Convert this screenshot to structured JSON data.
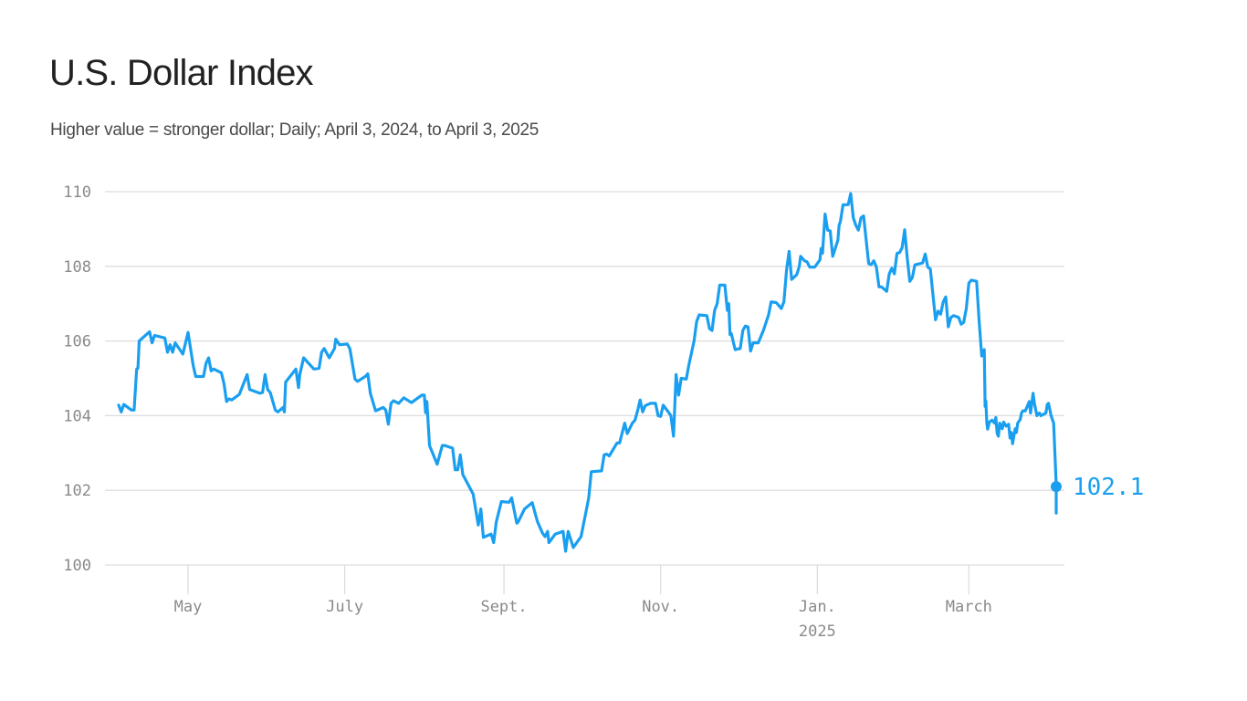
{
  "header": {
    "title": "U.S. Dollar Index",
    "subtitle": "Higher value = stronger dollar; Daily; April 3, 2024, to April 3, 2025"
  },
  "colors": {
    "line": "#1a9ff0",
    "grid": "#dddddd",
    "tick_text": "#8a8a8a",
    "title": "#222222",
    "subtitle": "#4a4a4a"
  },
  "chart_data": {
    "type": "line",
    "title": "U.S. Dollar Index",
    "subtitle": "Higher value = stronger dollar; Daily; April 3, 2024, to April 3, 2025",
    "xlabel": "",
    "ylabel": "",
    "ylim": [
      100,
      110
    ],
    "yticks": [
      100,
      102,
      104,
      106,
      108,
      110
    ],
    "xticks": [
      {
        "label": "May",
        "day": 27
      },
      {
        "label": "July",
        "day": 88
      },
      {
        "label": "Sept.",
        "day": 150
      },
      {
        "label": "Nov.",
        "day": 211
      },
      {
        "label": "Jan.",
        "sublabel": "2025",
        "day": 272
      },
      {
        "label": "March",
        "day": 331
      }
    ],
    "x_start": "2024-04-03",
    "x_end": "2025-04-03",
    "x_days_total": 365,
    "grid": true,
    "legend": null,
    "end_annotation": {
      "label": "102.1",
      "value": 102.1,
      "day": 365
    },
    "series": [
      {
        "name": "U.S. Dollar Index",
        "points": [
          [
            0,
            104.28
          ],
          [
            1,
            104.1
          ],
          [
            2,
            104.3
          ],
          [
            5,
            104.15
          ],
          [
            6,
            104.15
          ],
          [
            7,
            105.25
          ],
          [
            7.5,
            105.27
          ],
          [
            8,
            106.0
          ],
          [
            12,
            106.25
          ],
          [
            13,
            105.95
          ],
          [
            14,
            106.15
          ],
          [
            18,
            106.08
          ],
          [
            19,
            105.7
          ],
          [
            20,
            105.9
          ],
          [
            21,
            105.7
          ],
          [
            22,
            105.95
          ],
          [
            25,
            105.65
          ],
          [
            27,
            106.23
          ],
          [
            29,
            105.35
          ],
          [
            30,
            105.05
          ],
          [
            33,
            105.05
          ],
          [
            34,
            105.4
          ],
          [
            35,
            105.55
          ],
          [
            36,
            105.2
          ],
          [
            37,
            105.25
          ],
          [
            40,
            105.15
          ],
          [
            41,
            104.85
          ],
          [
            42,
            104.38
          ],
          [
            43,
            104.45
          ],
          [
            44,
            104.42
          ],
          [
            47,
            104.57
          ],
          [
            49,
            104.93
          ],
          [
            50,
            105.1
          ],
          [
            51,
            104.7
          ],
          [
            55,
            104.6
          ],
          [
            56,
            104.62
          ],
          [
            57,
            105.1
          ],
          [
            58,
            104.7
          ],
          [
            59,
            104.62
          ],
          [
            61,
            104.15
          ],
          [
            62,
            104.1
          ],
          [
            64,
            104.22
          ],
          [
            64.5,
            104.1
          ],
          [
            65,
            104.9
          ],
          [
            69,
            105.25
          ],
          [
            70,
            104.75
          ],
          [
            70.5,
            105.1
          ],
          [
            72,
            105.55
          ],
          [
            76,
            105.25
          ],
          [
            78,
            105.27
          ],
          [
            79,
            105.7
          ],
          [
            80,
            105.8
          ],
          [
            82,
            105.55
          ],
          [
            84,
            105.8
          ],
          [
            84.5,
            106.05
          ],
          [
            86,
            105.9
          ],
          [
            89,
            105.92
          ],
          [
            90,
            105.8
          ],
          [
            92,
            104.98
          ],
          [
            93,
            104.92
          ],
          [
            96,
            105.05
          ],
          [
            97,
            105.12
          ],
          [
            98,
            104.6
          ],
          [
            100,
            104.13
          ],
          [
            103,
            104.22
          ],
          [
            104,
            104.15
          ],
          [
            105,
            103.77
          ],
          [
            106,
            104.33
          ],
          [
            107,
            104.4
          ],
          [
            109,
            104.33
          ],
          [
            111,
            104.48
          ],
          [
            114,
            104.35
          ],
          [
            118,
            104.55
          ],
          [
            119,
            104.55
          ],
          [
            119.5,
            104.08
          ],
          [
            120,
            104.38
          ],
          [
            121,
            103.2
          ],
          [
            124,
            102.7
          ],
          [
            126,
            103.2
          ],
          [
            127,
            103.2
          ],
          [
            130,
            103.13
          ],
          [
            131,
            102.55
          ],
          [
            132,
            102.55
          ],
          [
            133,
            102.95
          ],
          [
            134,
            102.42
          ],
          [
            138,
            101.9
          ],
          [
            140,
            101.07
          ],
          [
            141,
            101.5
          ],
          [
            142,
            100.74
          ],
          [
            145,
            100.83
          ],
          [
            146,
            100.6
          ],
          [
            147,
            101.15
          ],
          [
            149,
            101.7
          ],
          [
            152,
            101.68
          ],
          [
            153,
            101.8
          ],
          [
            155,
            101.12
          ],
          [
            155.5,
            101.15
          ],
          [
            158,
            101.5
          ],
          [
            161,
            101.67
          ],
          [
            163,
            101.17
          ],
          [
            165,
            100.85
          ],
          [
            166,
            100.76
          ],
          [
            167,
            100.9
          ],
          [
            167.5,
            100.6
          ],
          [
            170,
            100.83
          ],
          [
            173,
            100.9
          ],
          [
            174,
            100.37
          ],
          [
            175,
            100.9
          ],
          [
            177,
            100.47
          ],
          [
            180,
            100.76
          ],
          [
            182,
            101.45
          ],
          [
            183,
            101.8
          ],
          [
            184,
            102.5
          ],
          [
            188,
            102.52
          ],
          [
            189,
            102.95
          ],
          [
            190,
            102.97
          ],
          [
            191,
            102.92
          ],
          [
            194,
            103.27
          ],
          [
            195,
            103.27
          ],
          [
            197,
            103.8
          ],
          [
            198,
            103.52
          ],
          [
            200,
            103.8
          ],
          [
            201,
            103.88
          ],
          [
            202,
            104.13
          ],
          [
            203,
            104.42
          ],
          [
            204,
            104.1
          ],
          [
            205,
            104.27
          ],
          [
            207,
            104.33
          ],
          [
            209,
            104.33
          ],
          [
            210,
            104.0
          ],
          [
            211,
            103.98
          ],
          [
            212,
            104.28
          ],
          [
            214,
            104.1
          ],
          [
            215,
            104.0
          ],
          [
            216,
            103.45
          ],
          [
            217,
            105.1
          ],
          [
            218,
            104.55
          ],
          [
            219,
            105.0
          ],
          [
            221,
            104.98
          ],
          [
            222,
            105.36
          ],
          [
            224,
            106.0
          ],
          [
            225,
            106.52
          ],
          [
            226,
            106.7
          ],
          [
            229,
            106.68
          ],
          [
            230,
            106.33
          ],
          [
            231,
            106.28
          ],
          [
            232,
            106.82
          ],
          [
            233,
            107.0
          ],
          [
            234,
            107.5
          ],
          [
            236,
            107.5
          ],
          [
            237,
            106.82
          ],
          [
            237.5,
            107.0
          ],
          [
            238,
            106.17
          ],
          [
            238.5,
            106.2
          ],
          [
            240,
            105.77
          ],
          [
            242,
            105.8
          ],
          [
            243,
            106.28
          ],
          [
            244,
            106.4
          ],
          [
            245,
            106.38
          ],
          [
            246,
            105.73
          ],
          [
            247,
            105.95
          ],
          [
            249,
            105.95
          ],
          [
            251,
            106.28
          ],
          [
            253,
            106.7
          ],
          [
            254,
            107.05
          ],
          [
            256,
            107.03
          ],
          [
            257,
            106.95
          ],
          [
            258,
            106.87
          ],
          [
            259,
            107.05
          ],
          [
            260,
            107.9
          ],
          [
            261,
            108.4
          ],
          [
            262,
            107.65
          ],
          [
            264,
            107.78
          ],
          [
            265,
            108.0
          ],
          [
            265.5,
            108.27
          ],
          [
            267,
            108.15
          ],
          [
            268,
            108.12
          ],
          [
            269,
            107.98
          ],
          [
            271,
            107.98
          ],
          [
            273,
            108.17
          ],
          [
            273.5,
            108.48
          ],
          [
            274,
            108.35
          ],
          [
            275,
            109.4
          ],
          [
            276,
            108.97
          ],
          [
            277,
            108.95
          ],
          [
            278,
            108.27
          ],
          [
            280,
            108.7
          ],
          [
            280.5,
            109.1
          ],
          [
            281,
            109.2
          ],
          [
            282,
            109.65
          ],
          [
            284,
            109.65
          ],
          [
            285,
            109.95
          ],
          [
            286,
            109.3
          ],
          [
            287,
            109.1
          ],
          [
            288,
            108.97
          ],
          [
            289,
            109.3
          ],
          [
            290,
            109.35
          ],
          [
            292,
            108.07
          ],
          [
            293,
            108.05
          ],
          [
            294,
            108.15
          ],
          [
            295,
            107.98
          ],
          [
            296,
            107.45
          ],
          [
            297,
            107.45
          ],
          [
            299,
            107.33
          ],
          [
            300,
            107.8
          ],
          [
            301,
            107.95
          ],
          [
            302,
            107.8
          ],
          [
            303,
            108.35
          ],
          [
            304,
            108.37
          ],
          [
            305,
            108.5
          ],
          [
            306,
            108.98
          ],
          [
            307,
            108.23
          ],
          [
            308,
            107.6
          ],
          [
            309,
            107.7
          ],
          [
            310,
            108.04
          ],
          [
            313,
            108.09
          ],
          [
            314,
            108.33
          ],
          [
            315,
            107.98
          ],
          [
            316,
            107.93
          ],
          [
            318,
            106.57
          ],
          [
            319,
            106.8
          ],
          [
            320,
            106.72
          ],
          [
            321,
            107.05
          ],
          [
            322,
            107.18
          ],
          [
            323,
            106.38
          ],
          [
            324,
            106.63
          ],
          [
            325,
            106.68
          ],
          [
            327,
            106.63
          ],
          [
            328,
            106.45
          ],
          [
            329,
            106.5
          ],
          [
            330,
            106.87
          ],
          [
            331,
            107.55
          ],
          [
            332,
            107.63
          ],
          [
            334,
            107.6
          ],
          [
            335,
            106.52
          ],
          [
            336,
            105.6
          ],
          [
            337,
            105.77
          ],
          [
            337.3,
            104.25
          ],
          [
            337.6,
            104.4
          ],
          [
            338,
            103.8
          ],
          [
            338.3,
            103.64
          ],
          [
            339,
            103.83
          ],
          [
            340,
            103.88
          ],
          [
            341,
            103.8
          ],
          [
            341.5,
            103.95
          ],
          [
            342,
            103.52
          ],
          [
            342.5,
            103.45
          ],
          [
            343,
            103.8
          ],
          [
            344,
            103.65
          ],
          [
            344.5,
            103.83
          ],
          [
            345.5,
            103.72
          ],
          [
            346.5,
            103.77
          ],
          [
            347,
            103.4
          ],
          [
            347.5,
            103.55
          ],
          [
            348,
            103.25
          ],
          [
            349,
            103.65
          ],
          [
            349.5,
            103.55
          ],
          [
            350,
            103.8
          ],
          [
            351,
            103.9
          ],
          [
            351.5,
            104.07
          ],
          [
            352,
            104.13
          ],
          [
            353,
            104.13
          ],
          [
            354.5,
            104.38
          ],
          [
            355,
            104.07
          ],
          [
            356,
            104.6
          ],
          [
            356.5,
            104.33
          ],
          [
            357.5,
            104.0
          ],
          [
            358,
            104.05
          ],
          [
            358.5,
            104.07
          ],
          [
            359,
            104.0
          ],
          [
            361,
            104.07
          ],
          [
            361.5,
            104.3
          ],
          [
            362,
            104.33
          ],
          [
            363,
            104.0
          ],
          [
            364,
            103.8
          ],
          [
            365,
            102.15
          ],
          [
            365,
            101.39
          ]
        ]
      }
    ]
  }
}
